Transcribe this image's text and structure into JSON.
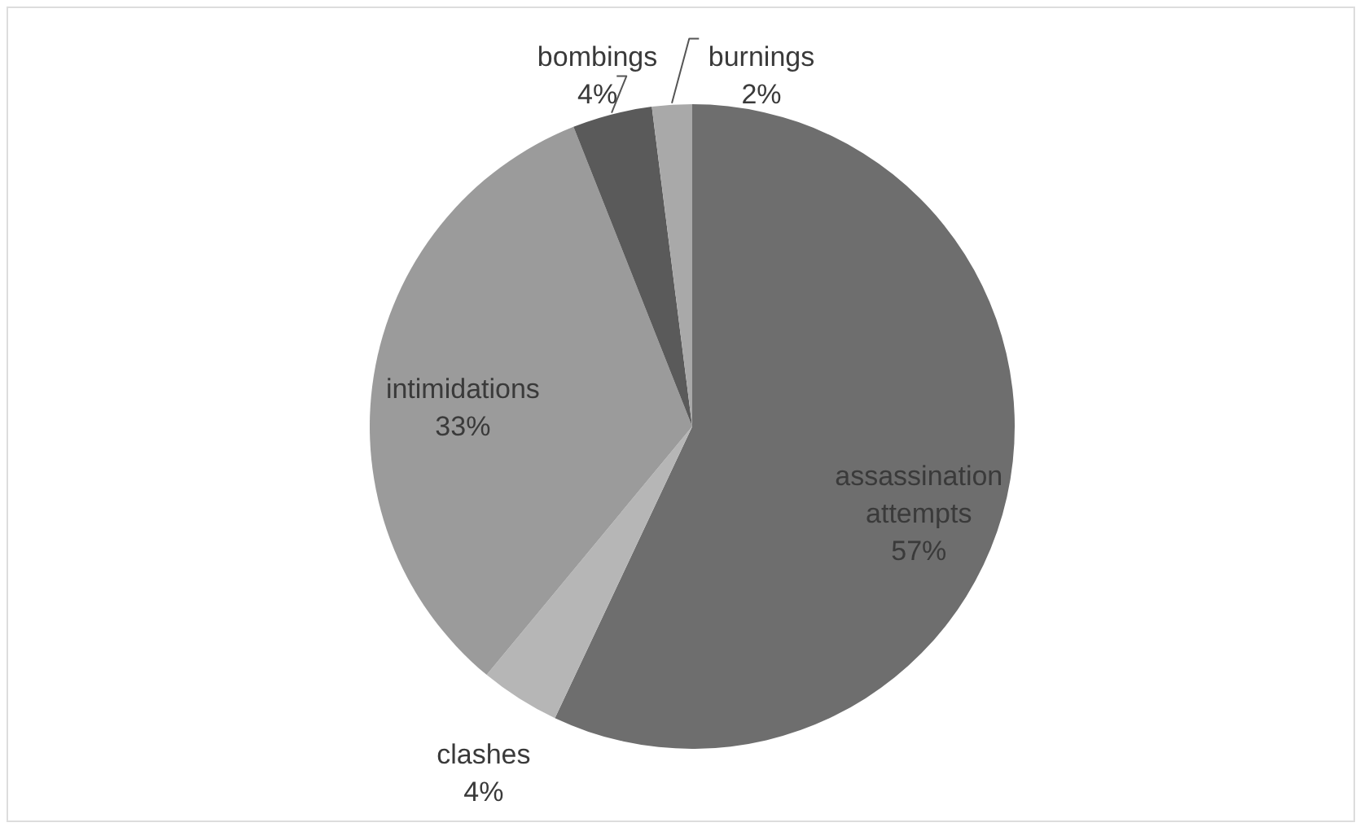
{
  "chart_data": {
    "type": "pie",
    "categories": [
      "assassination attempts",
      "clashes",
      "intimidations",
      "bombings",
      "burnings"
    ],
    "values": [
      57,
      4,
      33,
      4,
      2
    ],
    "colors": [
      "#6e6e6e",
      "#b6b6b6",
      "#9b9b9b",
      "#5a5a5a",
      "#a9a9a9"
    ],
    "value_labels": [
      "57%",
      "4%",
      "33%",
      "4%",
      "2%"
    ]
  }
}
